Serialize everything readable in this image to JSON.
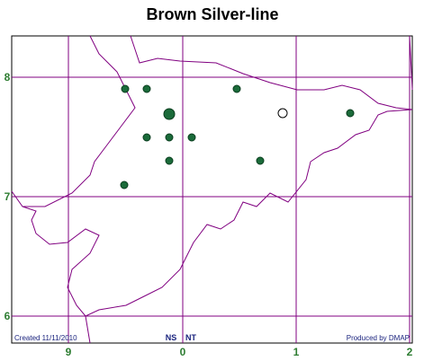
{
  "header": {
    "title": "Brown Silver-line"
  },
  "map": {
    "northings": [
      "8",
      "7",
      "6"
    ],
    "eastings": [
      "9",
      "0",
      "1",
      "2"
    ],
    "zone_labels": [
      "NS",
      "NT"
    ]
  },
  "footer": {
    "created": "Created 11/11/2010",
    "produced": "Produced by DMAP"
  }
}
